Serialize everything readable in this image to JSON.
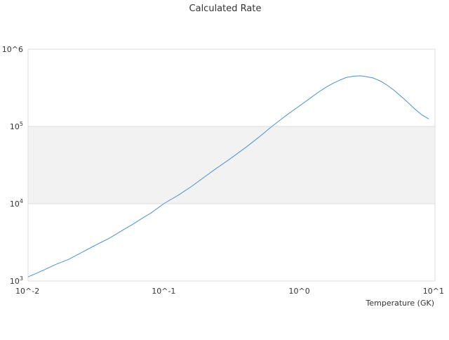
{
  "chart_data": {
    "type": "line",
    "title": "Calculated Rate",
    "xlabel": "Temperature (GK)",
    "ylabel": "",
    "xscale": "log",
    "yscale": "log",
    "xlim": [
      0.01,
      10
    ],
    "ylim": [
      1000,
      1000000
    ],
    "x_ticks": [
      {
        "value": 0.01,
        "base": "10^",
        "exp": "-2"
      },
      {
        "value": 0.1,
        "base": "10^",
        "exp": "-1"
      },
      {
        "value": 1,
        "base": "10^",
        "exp": "0"
      },
      {
        "value": 10,
        "base": "10^",
        "exp": "1"
      }
    ],
    "y_ticks": [
      {
        "value": 1000,
        "base": "10",
        "exp": "3"
      },
      {
        "value": 10000,
        "base": "10",
        "exp": "4"
      },
      {
        "value": 100000,
        "base": "10",
        "exp": "5"
      },
      {
        "value": 1000000,
        "base": "10^",
        "exp": "6"
      }
    ],
    "shaded_band": [
      10000,
      100000
    ],
    "grid": "horizontal",
    "line_color": "#4a90d9",
    "band_color": "#f2f2f2",
    "grid_color": "#dddddd",
    "series": [
      {
        "x": [
          0.01,
          0.013,
          0.016,
          0.02,
          0.025,
          0.03,
          0.04,
          0.05,
          0.06,
          0.07,
          0.08,
          0.1,
          0.13,
          0.16,
          0.2,
          0.25,
          0.3,
          0.4,
          0.5,
          0.6,
          0.7,
          0.8,
          1.0,
          1.2,
          1.4,
          1.6,
          1.8,
          2.0,
          2.2,
          2.5,
          2.8,
          3.0,
          3.5,
          4.0,
          4.5,
          5,
          6,
          7,
          8,
          9
        ],
        "y": [
          1130,
          1380,
          1640,
          1910,
          2350,
          2790,
          3600,
          4550,
          5500,
          6550,
          7500,
          10000,
          13100,
          16700,
          22200,
          29500,
          36800,
          53000,
          72000,
          94000,
          116000,
          139000,
          184000,
          232000,
          282000,
          328000,
          367000,
          400000,
          428000,
          447000,
          452000,
          447000,
          424000,
          383000,
          337000,
          293000,
          222000,
          172000,
          141000,
          125000
        ]
      }
    ]
  }
}
